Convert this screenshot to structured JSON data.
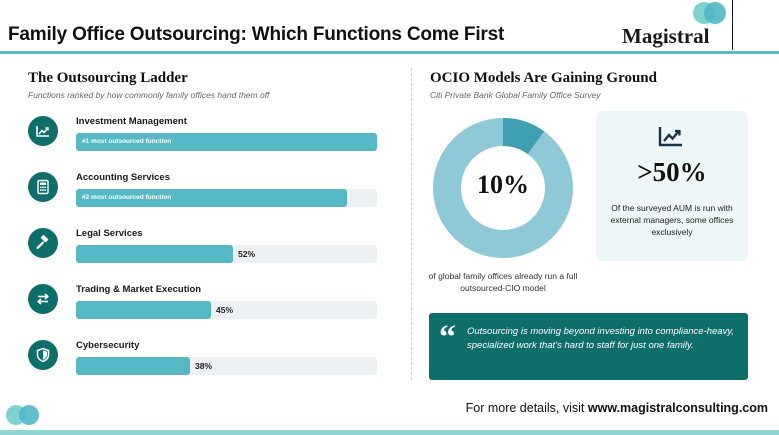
{
  "header": {
    "title": "Family Office Outsourcing: Which Functions Come First",
    "logo_text": "Magistral"
  },
  "ladder": {
    "title": "The Outsourcing Ladder",
    "subtitle": "Functions ranked by how commonly family offices hand them off",
    "items": [
      {
        "label": "Investment Management",
        "icon": "chart-trend-icon",
        "fill": 1.0,
        "bar_label": "#1 most outsourced function"
      },
      {
        "label": "Accounting Services",
        "icon": "calculator-icon",
        "fill": 0.9,
        "bar_label": "#2 most outsourced function"
      },
      {
        "label": "Legal Services",
        "icon": "gavel-icon",
        "fill": 0.52,
        "bar_label": "52%"
      },
      {
        "label": "Trading & Market Execution",
        "icon": "exchange-arrows-icon",
        "fill": 0.45,
        "bar_label": "45%"
      },
      {
        "label": "Cybersecurity",
        "icon": "shield-icon",
        "fill": 0.38,
        "bar_label": "38%"
      }
    ]
  },
  "ocio": {
    "title": "OCIO Models Are Gaining Ground",
    "subtitle": "Citi Private Bank Global Family Office Survey",
    "donut_value": "10%",
    "donut_fraction": 0.1,
    "donut_caption": "of global family offices already run a full outsourced-CIO model",
    "stat_value": ">50%",
    "stat_text": "Of the surveyed AUM is run with external managers, some offices exclusively",
    "stat_icon": "chart-trend-icon"
  },
  "quote": {
    "text": "Outsourcing is moving beyond investing into compliance-heavy, specialized work that’s hard to staff for just one family."
  },
  "footer": {
    "prefix": "For more details, visit ",
    "url": "www.magistralconsulting.com"
  },
  "colors": {
    "teal_dark": "#0e6e6a",
    "teal_bar": "#55b8c4",
    "donut_light": "#8fc8d6",
    "donut_dark": "#3f9fb0",
    "track": "#eef1f4"
  }
}
